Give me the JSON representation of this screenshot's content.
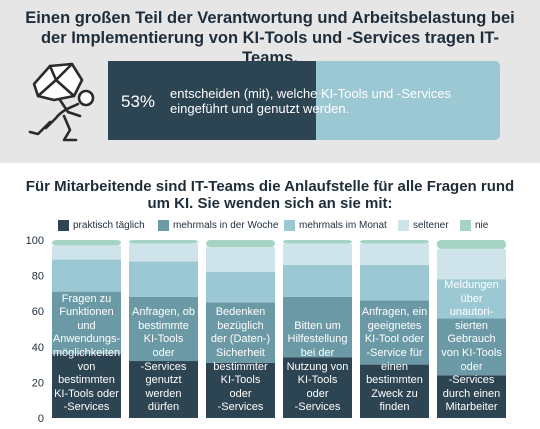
{
  "header": {
    "headline": "Einen großen Teil der Verantwortung und Arbeitsbelastung bei der Implementierung von KI-Tools und -Services tragen IT-Teams.",
    "stat_value": "53%",
    "stat_fraction": 0.53,
    "stat_text": "entscheiden (mit), welche KI-Tools und -Services eingeführt und genutzt werden.",
    "icon": "person-carrying-boulder-icon"
  },
  "subtitle": "Für Mitarbeitende sind IT-Teams die Anlaufstelle für alle Fragen rund um KI. Sie wenden sich an sie mit:",
  "colors": {
    "praktisch_taeglich": "#2d4452",
    "mehrmals_woche": "#6b9aa6",
    "mehrmals_monat": "#9cc8d4",
    "seltener": "#cfe4ea",
    "nie": "#a6d4c4"
  },
  "chart_data": {
    "type": "bar",
    "stacked": true,
    "ylim": [
      0,
      100
    ],
    "yticks": [
      0,
      20,
      40,
      60,
      80,
      100
    ],
    "legend_position": "top",
    "legend": [
      "praktisch täglich",
      "mehrmals in der Woche",
      "mehrmals im Monat",
      "seltener",
      "nie"
    ],
    "categories": [
      "Fragen zu Funktionen und Anwendungs-möglichkeiten von bestimmten KI-Tools oder -Services",
      "Anfragen, ob bestimmte KI-Tools oder -Services genutzt werden dürfen",
      "Bedenken bezüglich der (Daten-) Sicherheit bestimmter KI-Tools oder -Services",
      "Bitten um Hilfestellung bei der Nutzung von KI-Tools oder -Services",
      "Anfragen, ein geeignetes KI-Tool oder -Service für einen bestimmten Zweck zu finden",
      "Meldungen über unautori-sierten Gebrauch von KI-Tools oder -Services durch einen Mitarbeiter"
    ],
    "label_lines": [
      [
        "Fragen zu",
        "Funktionen",
        "und",
        "Anwendungs-",
        "möglichkeiten",
        "von",
        "bestimmten",
        "KI-Tools oder",
        "-Services"
      ],
      [
        "Anfragen, ob",
        "bestimmte",
        "KI-Tools",
        "oder",
        "-Services",
        "genutzt",
        "werden",
        "dürfen"
      ],
      [
        "Bedenken",
        "bezüglich",
        "der (Daten-)",
        "Sicherheit",
        "bestimmter",
        "KI-Tools",
        "oder",
        "-Services"
      ],
      [
        "Bitten um",
        "Hilfestellung",
        "bei der",
        "Nutzung von",
        "KI-Tools",
        "oder",
        "-Services"
      ],
      [
        "Anfragen, ein",
        "geeignetes",
        "KI-Tool oder",
        "-Service für",
        "einen",
        "bestimmten",
        "Zweck zu",
        "finden"
      ],
      [
        "Meldungen",
        "über",
        "unautori-",
        "sierten",
        "Gebrauch",
        "von KI-Tools",
        "oder",
        "-Services",
        "durch einen",
        "Mitarbeiter"
      ]
    ],
    "series": [
      {
        "name": "praktisch täglich",
        "values": [
          36,
          32,
          31,
          34,
          30,
          24
        ]
      },
      {
        "name": "mehrmals in der Woche",
        "values": [
          35,
          36,
          34,
          34,
          36,
          32
        ]
      },
      {
        "name": "mehrmals im Monat",
        "values": [
          18,
          20,
          17,
          18,
          20,
          22
        ]
      },
      {
        "name": "seltener",
        "values": [
          8,
          10,
          14,
          12,
          12,
          17
        ]
      },
      {
        "name": "nie",
        "values": [
          3,
          2,
          4,
          2,
          2,
          5
        ]
      }
    ]
  }
}
